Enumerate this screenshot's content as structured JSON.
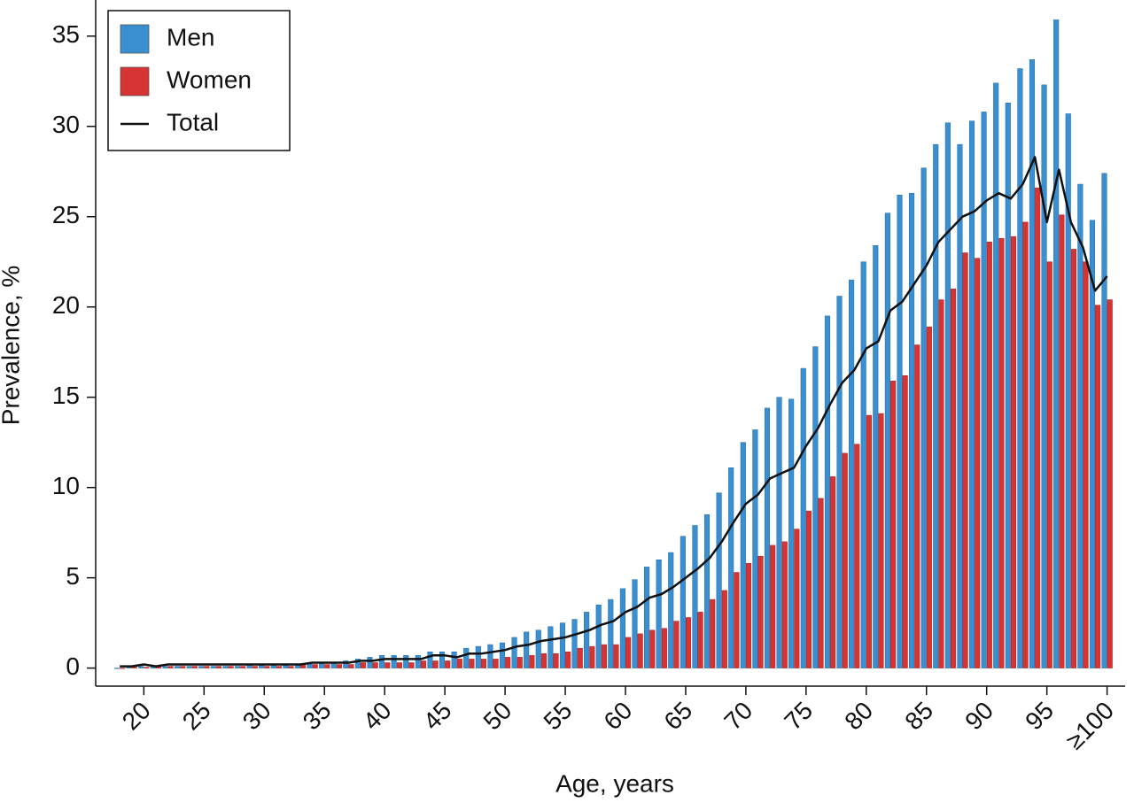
{
  "chart_data": {
    "type": "bar",
    "xlabel": "Age, years",
    "ylabel": "Prevalence, %",
    "x": [
      18,
      19,
      20,
      21,
      22,
      23,
      24,
      25,
      26,
      27,
      28,
      29,
      30,
      31,
      32,
      33,
      34,
      35,
      36,
      37,
      38,
      39,
      40,
      41,
      42,
      43,
      44,
      45,
      46,
      47,
      48,
      49,
      50,
      51,
      52,
      53,
      54,
      55,
      56,
      57,
      58,
      59,
      60,
      61,
      62,
      63,
      64,
      65,
      66,
      67,
      68,
      69,
      70,
      71,
      72,
      73,
      74,
      75,
      76,
      77,
      78,
      79,
      80,
      81,
      82,
      83,
      84,
      85,
      86,
      87,
      88,
      89,
      90,
      91,
      92,
      93,
      94,
      95,
      96,
      97,
      98,
      99,
      100
    ],
    "series": [
      {
        "name": "Men",
        "color": "#3a8fd1",
        "values": [
          0,
          0.05,
          0.1,
          0.1,
          0.1,
          0.1,
          0.1,
          0.1,
          0.1,
          0.1,
          0.1,
          0.2,
          0.2,
          0.2,
          0.2,
          0.2,
          0.3,
          0.3,
          0.3,
          0.4,
          0.5,
          0.6,
          0.7,
          0.7,
          0.7,
          0.7,
          0.9,
          0.9,
          0.9,
          1.1,
          1.2,
          1.3,
          1.4,
          1.7,
          2.0,
          2.1,
          2.3,
          2.5,
          2.7,
          3.1,
          3.5,
          3.8,
          4.4,
          4.9,
          5.6,
          6.0,
          6.4,
          7.3,
          7.9,
          8.5,
          9.7,
          11.1,
          12.5,
          13.2,
          14.4,
          15.0,
          14.9,
          16.6,
          17.8,
          19.5,
          20.6,
          21.5,
          22.5,
          23.4,
          25.2,
          26.2,
          26.3,
          27.7,
          29.0,
          30.2,
          29.0,
          30.3,
          30.8,
          32.4,
          31.3,
          33.2,
          33.7,
          32.3,
          35.9,
          30.7,
          26.8,
          24.8,
          27.4
        ]
      },
      {
        "name": "Women",
        "color": "#d63333",
        "values": [
          0,
          0.05,
          0.05,
          0.1,
          0.1,
          0.1,
          0.1,
          0.1,
          0.1,
          0.1,
          0.1,
          0.1,
          0.1,
          0.1,
          0.1,
          0.2,
          0.2,
          0.2,
          0.2,
          0.2,
          0.3,
          0.3,
          0.3,
          0.3,
          0.3,
          0.4,
          0.4,
          0.4,
          0.5,
          0.5,
          0.5,
          0.5,
          0.6,
          0.6,
          0.7,
          0.8,
          0.8,
          0.9,
          1.1,
          1.2,
          1.3,
          1.3,
          1.7,
          1.9,
          2.1,
          2.2,
          2.6,
          2.8,
          3.1,
          3.8,
          4.3,
          5.3,
          5.8,
          6.2,
          6.8,
          7.0,
          7.7,
          8.7,
          9.4,
          10.6,
          11.9,
          12.4,
          14.0,
          14.1,
          15.9,
          16.2,
          17.9,
          18.9,
          20.4,
          21.0,
          23.0,
          22.7,
          23.6,
          23.8,
          23.9,
          24.7,
          26.6,
          22.5,
          25.1,
          23.2,
          22.5,
          20.1,
          20.4
        ]
      },
      {
        "name": "Total",
        "color": "#111111",
        "type": "line",
        "values": [
          0.1,
          0.1,
          0.2,
          0.1,
          0.2,
          0.2,
          0.2,
          0.2,
          0.2,
          0.2,
          0.2,
          0.2,
          0.2,
          0.2,
          0.2,
          0.2,
          0.3,
          0.3,
          0.3,
          0.3,
          0.4,
          0.4,
          0.5,
          0.5,
          0.5,
          0.5,
          0.7,
          0.7,
          0.6,
          0.8,
          0.8,
          0.9,
          1.0,
          1.2,
          1.3,
          1.5,
          1.6,
          1.7,
          1.9,
          2.1,
          2.4,
          2.6,
          3.1,
          3.4,
          3.9,
          4.1,
          4.5,
          5.0,
          5.5,
          6.1,
          7.0,
          8.1,
          9.1,
          9.6,
          10.5,
          10.8,
          11.1,
          12.3,
          13.3,
          14.6,
          15.8,
          16.5,
          17.7,
          18.1,
          19.8,
          20.3,
          21.3,
          22.3,
          23.6,
          24.3,
          25.0,
          25.3,
          25.9,
          26.3,
          26.0,
          26.8,
          28.3,
          24.7,
          27.6,
          24.7,
          23.3,
          20.9,
          21.7
        ]
      }
    ],
    "xlim": [
      16,
      101.5
    ],
    "xticks": [
      20,
      25,
      30,
      35,
      40,
      45,
      50,
      55,
      60,
      65,
      70,
      75,
      80,
      85,
      90,
      95,
      {
        "value": 100,
        "label": "≥100"
      }
    ],
    "ylim": [
      -1,
      37
    ],
    "yticks": [
      0,
      5,
      10,
      15,
      20,
      25,
      30,
      35
    ],
    "legend": "upper left"
  }
}
